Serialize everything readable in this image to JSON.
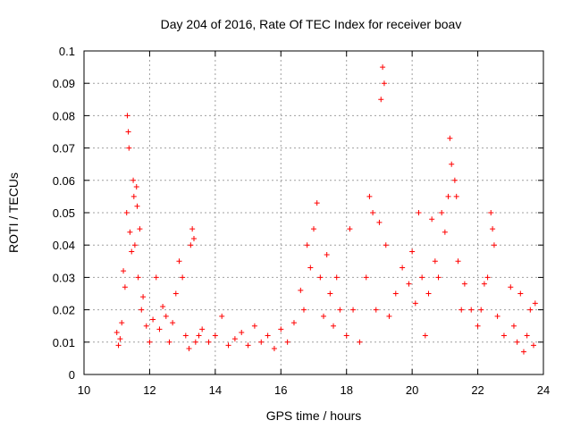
{
  "chart_data": {
    "type": "scatter",
    "title": "Day 204 of 2016, Rate Of TEC Index for receiver boav",
    "xlabel": "GPS time / hours",
    "ylabel": "ROTI / TECUs",
    "xlim": [
      10,
      24
    ],
    "ylim": [
      0,
      0.1
    ],
    "xticks": [
      "10",
      "12",
      "14",
      "16",
      "18",
      "20",
      "22",
      "24"
    ],
    "yticks": [
      "0",
      "0.01",
      "0.02",
      "0.03",
      "0.04",
      "0.05",
      "0.06",
      "0.07",
      "0.08",
      "0.09",
      "0.1"
    ],
    "grid": true,
    "marker": "plus",
    "color": "#ff0000",
    "series": [
      {
        "name": "ROTI",
        "points": [
          [
            11.0,
            0.013
          ],
          [
            11.05,
            0.009
          ],
          [
            11.1,
            0.011
          ],
          [
            11.15,
            0.016
          ],
          [
            11.2,
            0.032
          ],
          [
            11.25,
            0.027
          ],
          [
            11.3,
            0.05
          ],
          [
            11.32,
            0.08
          ],
          [
            11.35,
            0.075
          ],
          [
            11.37,
            0.07
          ],
          [
            11.4,
            0.044
          ],
          [
            11.45,
            0.038
          ],
          [
            11.5,
            0.06
          ],
          [
            11.52,
            0.055
          ],
          [
            11.55,
            0.04
          ],
          [
            11.6,
            0.058
          ],
          [
            11.62,
            0.052
          ],
          [
            11.65,
            0.03
          ],
          [
            11.7,
            0.045
          ],
          [
            11.75,
            0.02
          ],
          [
            11.8,
            0.024
          ],
          [
            11.9,
            0.015
          ],
          [
            12.0,
            0.01
          ],
          [
            12.1,
            0.017
          ],
          [
            12.2,
            0.03
          ],
          [
            12.3,
            0.014
          ],
          [
            12.4,
            0.021
          ],
          [
            12.5,
            0.018
          ],
          [
            12.6,
            0.01
          ],
          [
            12.7,
            0.016
          ],
          [
            12.8,
            0.025
          ],
          [
            12.9,
            0.035
          ],
          [
            13.0,
            0.03
          ],
          [
            13.1,
            0.012
          ],
          [
            13.2,
            0.008
          ],
          [
            13.25,
            0.04
          ],
          [
            13.3,
            0.045
          ],
          [
            13.35,
            0.042
          ],
          [
            13.4,
            0.01
          ],
          [
            13.5,
            0.012
          ],
          [
            13.6,
            0.014
          ],
          [
            13.8,
            0.01
          ],
          [
            14.0,
            0.012
          ],
          [
            14.2,
            0.018
          ],
          [
            14.4,
            0.009
          ],
          [
            14.6,
            0.011
          ],
          [
            14.8,
            0.013
          ],
          [
            15.0,
            0.009
          ],
          [
            15.2,
            0.015
          ],
          [
            15.4,
            0.01
          ],
          [
            15.6,
            0.012
          ],
          [
            15.8,
            0.008
          ],
          [
            16.0,
            0.014
          ],
          [
            16.2,
            0.01
          ],
          [
            16.4,
            0.016
          ],
          [
            16.6,
            0.026
          ],
          [
            16.7,
            0.02
          ],
          [
            16.8,
            0.04
          ],
          [
            16.9,
            0.033
          ],
          [
            17.0,
            0.045
          ],
          [
            17.1,
            0.053
          ],
          [
            17.2,
            0.03
          ],
          [
            17.3,
            0.018
          ],
          [
            17.4,
            0.037
          ],
          [
            17.5,
            0.025
          ],
          [
            17.6,
            0.015
          ],
          [
            17.7,
            0.03
          ],
          [
            17.8,
            0.02
          ],
          [
            18.0,
            0.012
          ],
          [
            18.1,
            0.045
          ],
          [
            18.2,
            0.02
          ],
          [
            18.4,
            0.01
          ],
          [
            18.6,
            0.03
          ],
          [
            18.7,
            0.055
          ],
          [
            18.8,
            0.05
          ],
          [
            18.9,
            0.02
          ],
          [
            19.0,
            0.047
          ],
          [
            19.05,
            0.085
          ],
          [
            19.1,
            0.095
          ],
          [
            19.15,
            0.09
          ],
          [
            19.2,
            0.04
          ],
          [
            19.3,
            0.018
          ],
          [
            19.5,
            0.025
          ],
          [
            19.7,
            0.033
          ],
          [
            19.9,
            0.028
          ],
          [
            20.0,
            0.038
          ],
          [
            20.1,
            0.022
          ],
          [
            20.2,
            0.05
          ],
          [
            20.3,
            0.03
          ],
          [
            20.4,
            0.012
          ],
          [
            20.5,
            0.025
          ],
          [
            20.6,
            0.048
          ],
          [
            20.7,
            0.035
          ],
          [
            20.8,
            0.03
          ],
          [
            20.9,
            0.05
          ],
          [
            21.0,
            0.044
          ],
          [
            21.1,
            0.055
          ],
          [
            21.15,
            0.073
          ],
          [
            21.2,
            0.065
          ],
          [
            21.3,
            0.06
          ],
          [
            21.35,
            0.055
          ],
          [
            21.4,
            0.035
          ],
          [
            21.5,
            0.02
          ],
          [
            21.6,
            0.028
          ],
          [
            21.8,
            0.02
          ],
          [
            22.0,
            0.015
          ],
          [
            22.1,
            0.02
          ],
          [
            22.2,
            0.028
          ],
          [
            22.3,
            0.03
          ],
          [
            22.4,
            0.05
          ],
          [
            22.45,
            0.045
          ],
          [
            22.5,
            0.04
          ],
          [
            22.6,
            0.018
          ],
          [
            22.8,
            0.012
          ],
          [
            23.0,
            0.027
          ],
          [
            23.1,
            0.015
          ],
          [
            23.2,
            0.01
          ],
          [
            23.3,
            0.025
          ],
          [
            23.4,
            0.007
          ],
          [
            23.5,
            0.012
          ],
          [
            23.6,
            0.02
          ],
          [
            23.7,
            0.009
          ],
          [
            23.75,
            0.022
          ]
        ]
      }
    ]
  }
}
